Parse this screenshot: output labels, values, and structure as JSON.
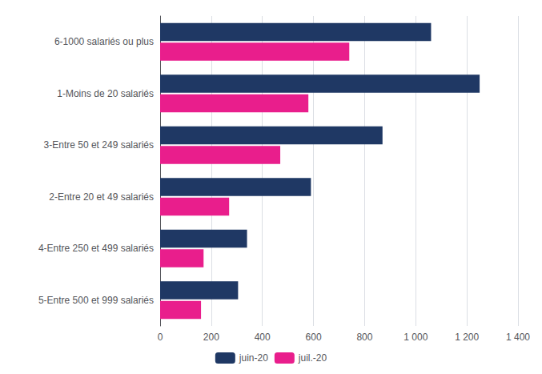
{
  "chart_data": {
    "type": "bar",
    "orientation": "horizontal",
    "categories": [
      "6-1000 salariés ou plus",
      "1-Moins de 20 salariés",
      "3-Entre 50 et 249 salariés",
      "2-Entre 20 et 49 salariés",
      "4-Entre 250 et 499 salariés",
      "5-Entre 500 et 999 salariés"
    ],
    "series": [
      {
        "name": "juin-20",
        "color": "#1f3864",
        "values": [
          1060,
          1250,
          870,
          590,
          340,
          305
        ]
      },
      {
        "name": "juil.-20",
        "color": "#e91e8c",
        "values": [
          740,
          580,
          470,
          270,
          170,
          160
        ]
      }
    ],
    "xlim": [
      0,
      1400
    ],
    "xticks": [
      0,
      200,
      400,
      600,
      800,
      {
        "value": 1000,
        "label": "1 000"
      },
      {
        "value": 1200,
        "label": "1 200"
      },
      {
        "value": 1400,
        "label": "1 400"
      }
    ],
    "grid": true,
    "legend": "bottom"
  }
}
